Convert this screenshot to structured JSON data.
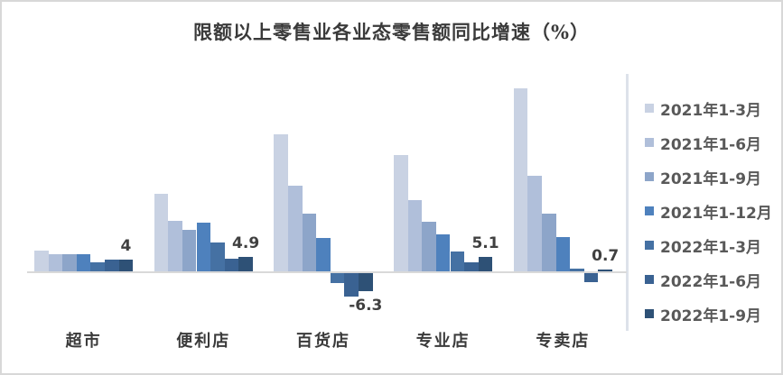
{
  "chart_data": {
    "type": "bar",
    "title": "限额以上零售业各业态零售额同比增速（%）",
    "categories": [
      "超市",
      "便利店",
      "百货店",
      "专业店",
      "专卖店"
    ],
    "series": [
      {
        "name": "2021年1-3月",
        "color": "#c9d2e3",
        "values": [
          7.4,
          27.0,
          48.0,
          40.7,
          64.0
        ]
      },
      {
        "name": "2021年1-6月",
        "color": "#b0bfda",
        "values": [
          5.9,
          17.7,
          30.0,
          24.9,
          33.3
        ]
      },
      {
        "name": "2021年1-9月",
        "color": "#8da5c9",
        "values": [
          5.9,
          14.5,
          20.3,
          17.4,
          20.2
        ]
      },
      {
        "name": "2021年1-12月",
        "color": "#4e81bd",
        "values": [
          6.1,
          17.1,
          11.7,
          12.8,
          12.0
        ]
      },
      {
        "name": "2022年1-3月",
        "color": "#4571a3",
        "values": [
          3.2,
          10.0,
          -3.5,
          6.8,
          1.0
        ]
      },
      {
        "name": "2022年1-6月",
        "color": "#3a6292",
        "values": [
          4.2,
          4.5,
          -8.1,
          3.1,
          -3.0
        ]
      },
      {
        "name": "2022年1-9月",
        "color": "#2e5176",
        "values": [
          4.0,
          4.9,
          -6.3,
          5.1,
          0.7
        ]
      }
    ],
    "data_labels": {
      "series": "2022年1-9月",
      "values": [
        "4",
        "4.9",
        "-6.3",
        "5.1",
        "0.7"
      ]
    },
    "legend_position": "right",
    "grid": false,
    "baseline_value": 0,
    "ylim": [
      -10,
      70
    ],
    "axis_line_color": "#d9d9d9"
  }
}
